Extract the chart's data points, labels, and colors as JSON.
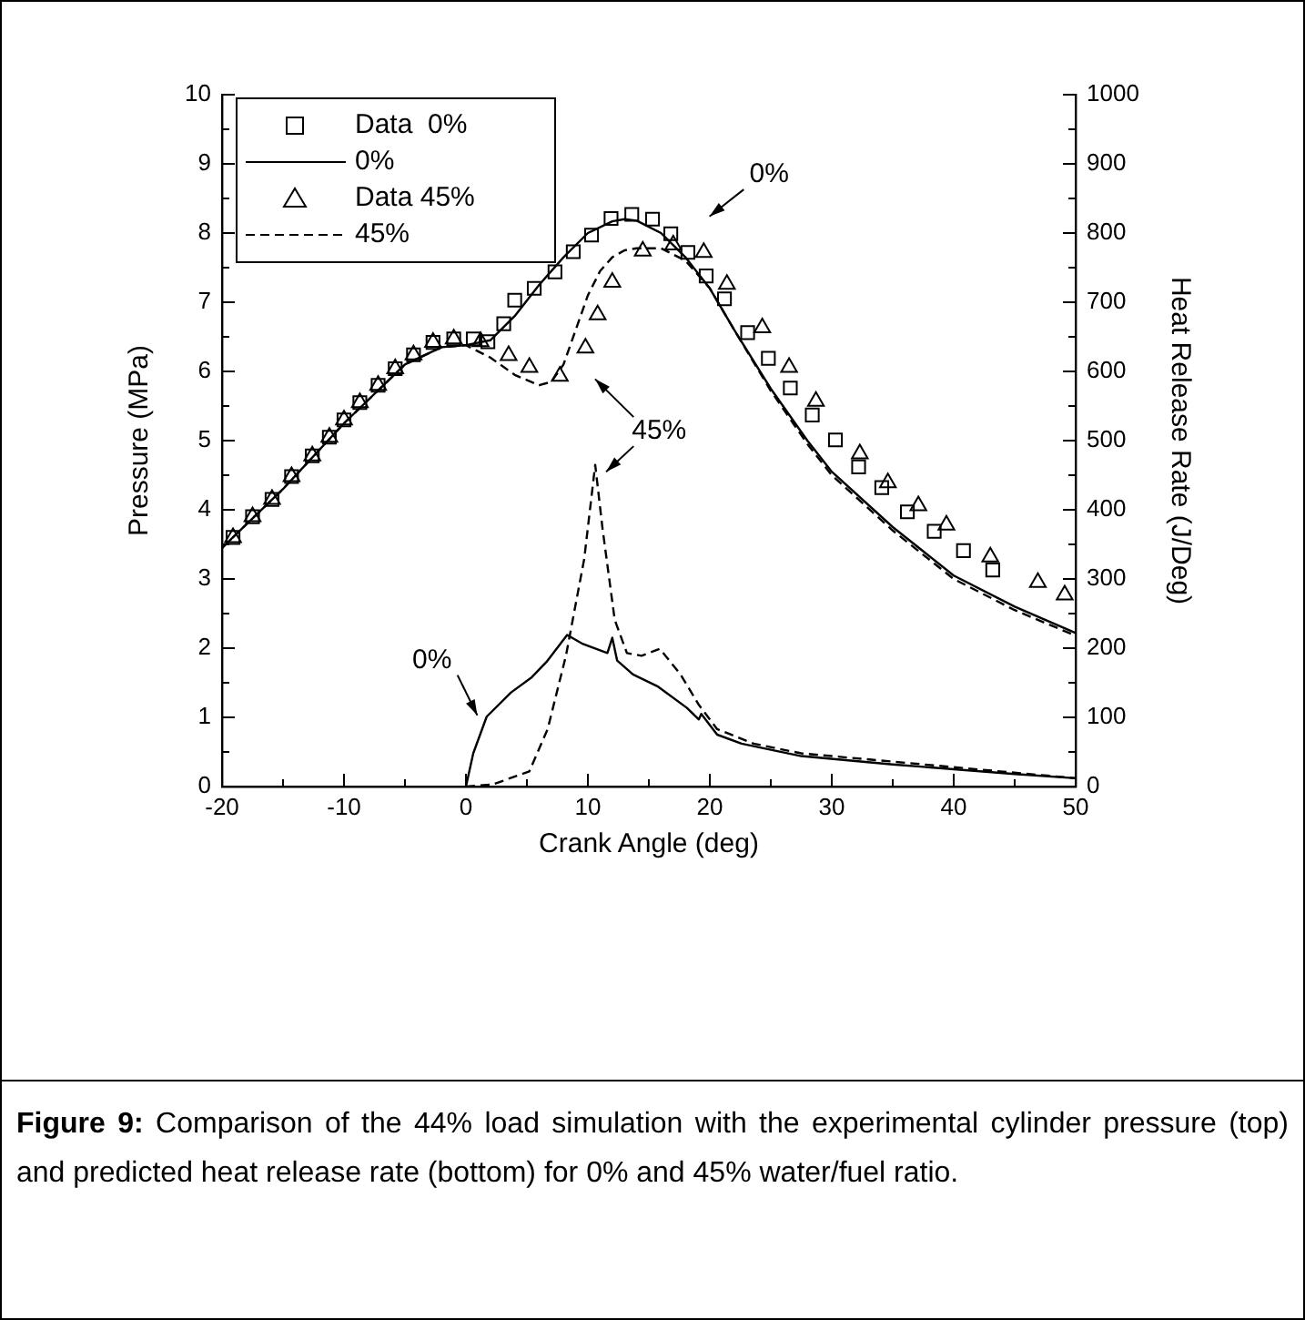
{
  "chart_data": {
    "type": "line",
    "xlabel": "Crank Angle (deg)",
    "ylabel": "Pressure (MPa)",
    "y2label": "Heat Release Rate (J/Deg)",
    "xlim": [
      -20,
      50
    ],
    "xticks": [
      -20,
      -10,
      0,
      10,
      20,
      30,
      40,
      50
    ],
    "ylim": [
      0,
      10
    ],
    "yticks": [
      0,
      1,
      2,
      3,
      4,
      5,
      6,
      7,
      8,
      9,
      10
    ],
    "y2lim": [
      0,
      1000
    ],
    "y2ticks": [
      0,
      100,
      200,
      300,
      400,
      500,
      600,
      700,
      800,
      900,
      1000
    ],
    "legend": "top left",
    "grid": false,
    "series": [
      {
        "name": "Data  0%",
        "type": "scatter",
        "marker": "square",
        "color": "#000000",
        "x": [
          -19.1,
          -17.5,
          -15.9,
          -14.3,
          -12.6,
          -11.2,
          -10,
          -8.7,
          -7.2,
          -5.8,
          -4.3,
          -2.7,
          -1.0,
          0.6,
          1.8,
          3.1,
          4.0,
          5.6,
          7.3,
          8.8,
          10.3,
          11.9,
          13.6,
          15.3,
          16.8,
          18.2,
          19.7,
          21.2,
          23.1,
          24.8,
          26.6,
          28.4,
          30.3,
          32.2,
          34.1,
          36.2,
          38.4,
          40.8,
          43.2
        ],
        "values": [
          3.6,
          3.9,
          4.15,
          4.48,
          4.78,
          5.05,
          5.3,
          5.55,
          5.8,
          6.04,
          6.24,
          6.42,
          6.47,
          6.47,
          6.43,
          6.69,
          7.03,
          7.2,
          7.44,
          7.73,
          7.97,
          8.21,
          8.27,
          8.2,
          7.99,
          7.72,
          7.38,
          7.05,
          6.56,
          6.19,
          5.76,
          5.37,
          5.01,
          4.62,
          4.32,
          3.97,
          3.69,
          3.41,
          3.13
        ]
      },
      {
        "name": "0%",
        "line_style": "solid",
        "color": "#000000",
        "x": [
          -20,
          -15,
          -10,
          -5,
          -2,
          0,
          2,
          4,
          6,
          8,
          10,
          12,
          13,
          14,
          16,
          18,
          20,
          22,
          25,
          28,
          30,
          35,
          40,
          45,
          50
        ],
        "values": [
          3.45,
          4.3,
          5.25,
          6.1,
          6.35,
          6.38,
          6.45,
          6.8,
          7.25,
          7.65,
          8.0,
          8.17,
          8.2,
          8.18,
          8.0,
          7.65,
          7.2,
          6.6,
          5.75,
          5.0,
          4.55,
          3.75,
          3.05,
          2.6,
          2.22
        ]
      },
      {
        "name": "Data 45%",
        "type": "scatter",
        "marker": "triangle",
        "color": "#000000",
        "x": [
          -19.1,
          -17.5,
          -15.9,
          -14.3,
          -12.6,
          -11.2,
          -10,
          -8.7,
          -7.2,
          -5.8,
          -4.3,
          -2.7,
          -1.0,
          1.2,
          3.5,
          5.2,
          7.7,
          9.8,
          10.8,
          12.0,
          14.5,
          17.0,
          19.5,
          21.4,
          24.3,
          26.5,
          28.7,
          32.3,
          34.6,
          37.1,
          39.4,
          43.0,
          46.9,
          49.1
        ],
        "values": [
          3.6,
          3.9,
          4.15,
          4.48,
          4.78,
          5.05,
          5.3,
          5.55,
          5.8,
          6.04,
          6.24,
          6.42,
          6.47,
          6.43,
          6.23,
          6.06,
          5.93,
          6.34,
          6.82,
          7.29,
          7.74,
          7.83,
          7.72,
          7.26,
          6.63,
          6.06,
          5.57,
          4.81,
          4.39,
          4.06,
          3.78,
          3.32,
          2.95,
          2.77
        ]
      },
      {
        "name": "45%",
        "line_style": "dashed",
        "color": "#000000",
        "x": [
          -20,
          -15,
          -10,
          -5,
          -2,
          0,
          2,
          4,
          6,
          7,
          8,
          9,
          10,
          11,
          12,
          13,
          14,
          16,
          18,
          20,
          22,
          25,
          28,
          30,
          35,
          40,
          45,
          50
        ],
        "values": [
          3.45,
          4.3,
          5.25,
          6.1,
          6.35,
          6.38,
          6.2,
          5.95,
          5.8,
          5.85,
          6.1,
          6.6,
          7.1,
          7.45,
          7.65,
          7.75,
          7.78,
          7.78,
          7.6,
          7.2,
          6.6,
          5.72,
          4.95,
          4.5,
          3.7,
          3.0,
          2.55,
          2.18
        ]
      },
      {
        "axis": "y2",
        "line_style": "solid",
        "color": "#000000",
        "x": [
          0,
          0.6,
          1.7,
          3.7,
          5.4,
          6.6,
          8.3,
          9.6,
          11.6,
          12.0,
          12.4,
          13.7,
          15.7,
          18.1,
          19.1,
          19.3,
          20.6,
          22.6,
          27.5,
          35,
          40,
          45,
          50
        ],
        "values": [
          0,
          48,
          101,
          136,
          158,
          180,
          219,
          206,
          193,
          215,
          182,
          162,
          145,
          114,
          97,
          105,
          75,
          62,
          44,
          32,
          25,
          18,
          12
        ]
      },
      {
        "axis": "y2",
        "line_style": "dashed",
        "color": "#000000",
        "x": [
          0,
          2.2,
          5.2,
          6.7,
          8.2,
          9.7,
          10.6,
          11.2,
          12.2,
          13.2,
          14.4,
          15.9,
          17.6,
          19.1,
          20.6,
          23.6,
          27.5,
          30,
          40,
          50
        ],
        "values": [
          0,
          3,
          22,
          83,
          189,
          329,
          465,
          373,
          241,
          193,
          189,
          199,
          162,
          118,
          83,
          62,
          48,
          44,
          28,
          12
        ]
      }
    ],
    "annotations": [
      "0%",
      "45%",
      "0%",
      "Figure 9: Comparison of the 44% load simulation with the experimental cylinder pressure (top) and predicted heat release rate (bottom) for 0% and 45% water/fuel ratio."
    ]
  }
}
